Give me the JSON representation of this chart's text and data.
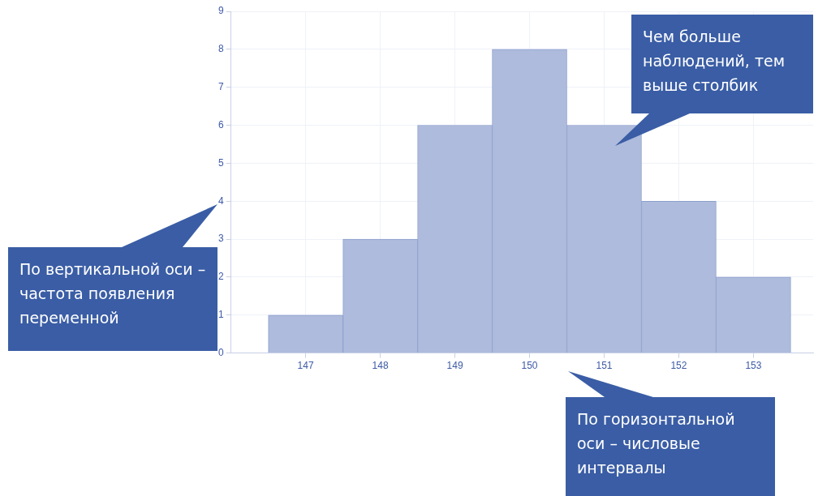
{
  "chart_data": {
    "type": "histogram",
    "bins": [
      146.5,
      147.5,
      148.5,
      149.5,
      150.5,
      151.5,
      152.5,
      153.5
    ],
    "values": [
      1,
      3,
      6,
      8,
      6,
      4,
      2
    ],
    "color": "#aebbdc",
    "xlim": [
      146,
      153.8
    ],
    "xticks": [
      147,
      148,
      149,
      150,
      151,
      152,
      153
    ],
    "ylim": [
      0,
      9
    ],
    "yticks": [
      0,
      1,
      2,
      3,
      4,
      5,
      6,
      7,
      8,
      9
    ],
    "grid": true,
    "legend": false,
    "annotations": [
      "По вертикальной оси – частота появления переменной",
      "Чем больше наблюдений, тем выше столбик",
      "По горизонтальной оси – числовые интервалы"
    ]
  }
}
